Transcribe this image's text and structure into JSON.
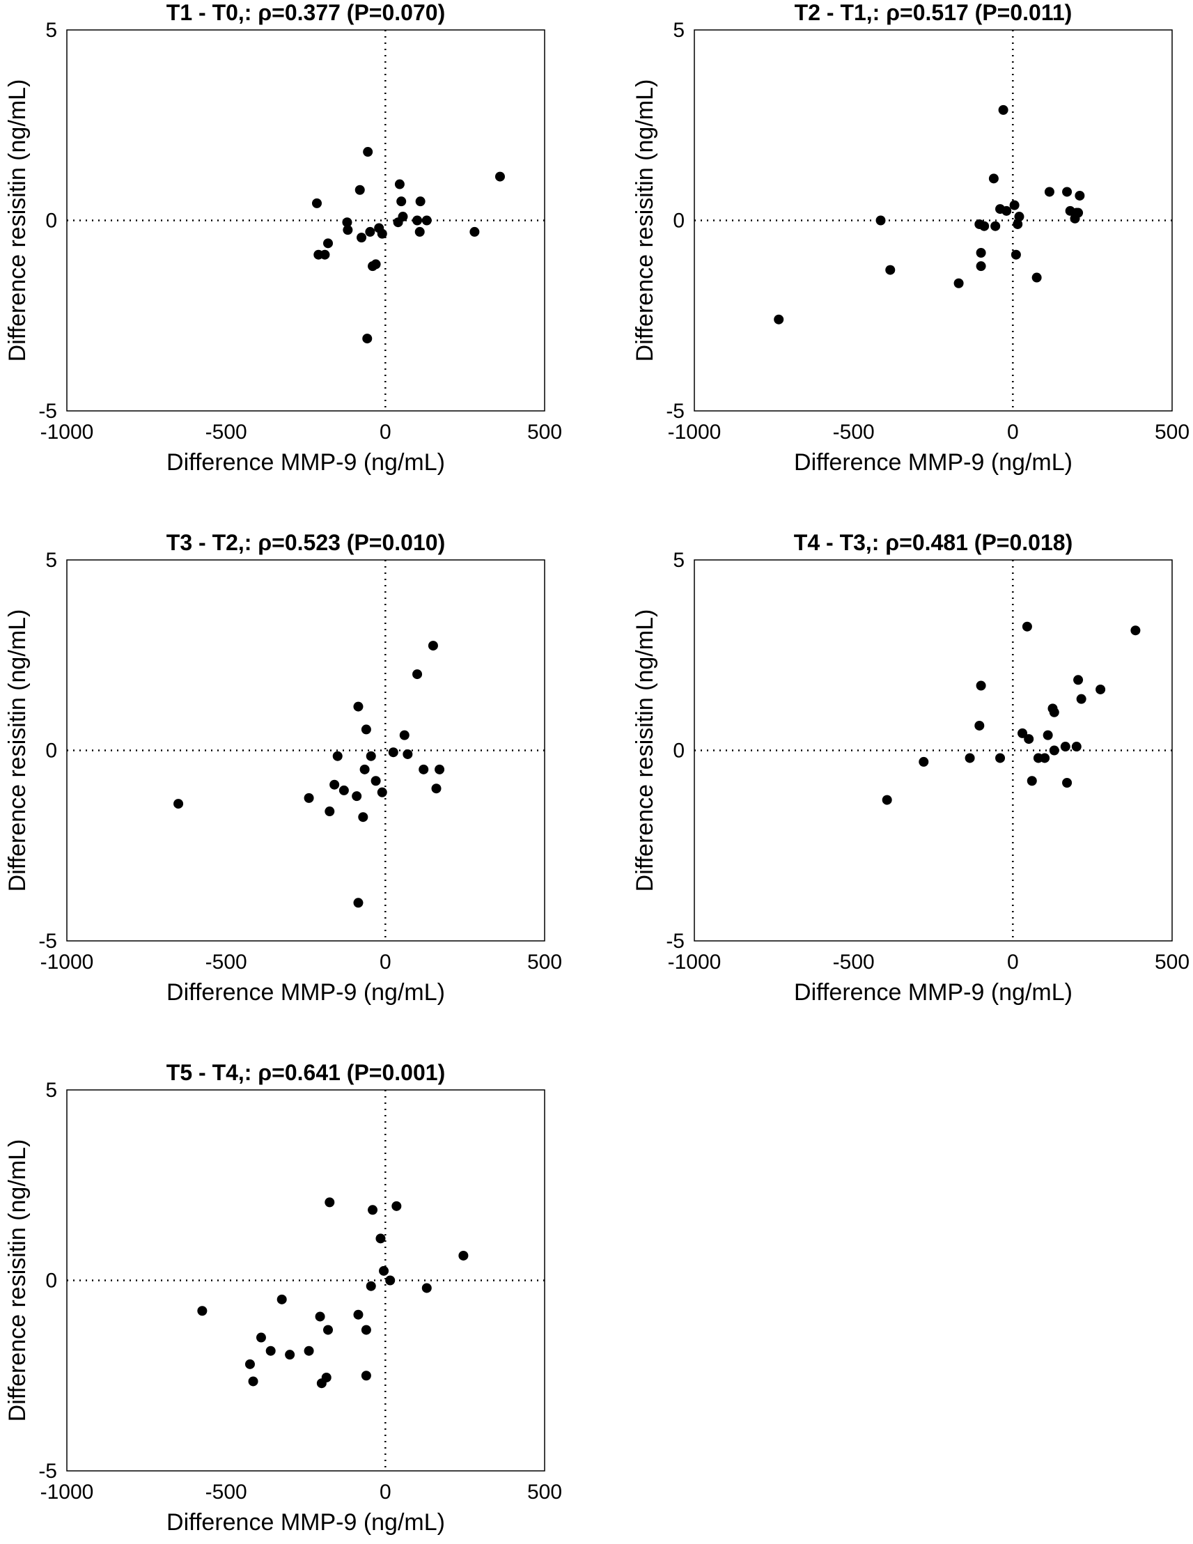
{
  "chart_data": [
    {
      "type": "scatter",
      "title": "T1 - T0,: ρ=0.377 (P=0.070)",
      "xlabel": "Difference MMP-9 (ng/mL)",
      "ylabel": "Difference resisitin (ng/mL)",
      "xlim": [
        -1000,
        500
      ],
      "ylim": [
        -5,
        5
      ],
      "xticks": [
        "-1000",
        "-500",
        "0",
        "500"
      ],
      "yticks": [
        "-5",
        "0",
        "5"
      ],
      "reference_lines": {
        "x": 0,
        "y": 0,
        "style": "dotted"
      },
      "grid": false,
      "points": [
        [
          -215,
          0.45
        ],
        [
          -210,
          -0.9
        ],
        [
          -190,
          -0.9
        ],
        [
          -180,
          -0.6
        ],
        [
          -120,
          -0.05
        ],
        [
          -118,
          -0.25
        ],
        [
          -80,
          0.8
        ],
        [
          -75,
          -0.45
        ],
        [
          -55,
          1.8
        ],
        [
          -57,
          -3.1
        ],
        [
          -48,
          -0.3
        ],
        [
          -40,
          -1.2
        ],
        [
          -30,
          -1.15
        ],
        [
          -20,
          -0.2
        ],
        [
          -10,
          -0.35
        ],
        [
          40,
          -0.05
        ],
        [
          45,
          0.95
        ],
        [
          50,
          0.5
        ],
        [
          55,
          0.1
        ],
        [
          100,
          0.0
        ],
        [
          108,
          -0.3
        ],
        [
          110,
          0.5
        ],
        [
          130,
          0.0
        ],
        [
          280,
          -0.3
        ],
        [
          360,
          1.15
        ]
      ]
    },
    {
      "type": "scatter",
      "title": "T2 - T1,: ρ=0.517 (P=0.011)",
      "xlabel": "Difference MMP-9 (ng/mL)",
      "ylabel": "Difference resisitin (ng/mL)",
      "xlim": [
        -1000,
        500
      ],
      "ylim": [
        -5,
        5
      ],
      "xticks": [
        "-1000",
        "-500",
        "0",
        "500"
      ],
      "yticks": [
        "-5",
        "0",
        "5"
      ],
      "reference_lines": {
        "x": 0,
        "y": 0,
        "style": "dotted"
      },
      "grid": false,
      "points": [
        [
          -735,
          -2.6
        ],
        [
          -415,
          0.0
        ],
        [
          -385,
          -1.3
        ],
        [
          -170,
          -1.65
        ],
        [
          -105,
          -0.1
        ],
        [
          -100,
          -0.85
        ],
        [
          -100,
          -1.2
        ],
        [
          -90,
          -0.15
        ],
        [
          -60,
          1.1
        ],
        [
          -55,
          -0.15
        ],
        [
          -40,
          0.3
        ],
        [
          -30,
          2.9
        ],
        [
          -20,
          0.25
        ],
        [
          5,
          0.4
        ],
        [
          10,
          -0.9
        ],
        [
          15,
          -0.1
        ],
        [
          20,
          0.1
        ],
        [
          75,
          -1.5
        ],
        [
          115,
          0.75
        ],
        [
          170,
          0.75
        ],
        [
          180,
          0.25
        ],
        [
          195,
          0.05
        ],
        [
          200,
          0.2
        ],
        [
          205,
          0.2
        ],
        [
          210,
          0.65
        ]
      ]
    },
    {
      "type": "scatter",
      "title": "T3 - T2,: ρ=0.523 (P=0.010)",
      "xlabel": "Difference MMP-9 (ng/mL)",
      "ylabel": "Difference resisitin (ng/mL)",
      "xlim": [
        -1000,
        500
      ],
      "ylim": [
        -5,
        5
      ],
      "xticks": [
        "-1000",
        "-500",
        "0",
        "500"
      ],
      "yticks": [
        "-5",
        "0",
        "5"
      ],
      "reference_lines": {
        "x": 0,
        "y": 0,
        "style": "dotted"
      },
      "grid": false,
      "points": [
        [
          -650,
          -1.4
        ],
        [
          -240,
          -1.25
        ],
        [
          -175,
          -1.6
        ],
        [
          -160,
          -0.9
        ],
        [
          -150,
          -0.15
        ],
        [
          -130,
          -1.05
        ],
        [
          -90,
          -1.2
        ],
        [
          -85,
          1.15
        ],
        [
          -85,
          -4.0
        ],
        [
          -70,
          -1.75
        ],
        [
          -65,
          -0.5
        ],
        [
          -60,
          0.55
        ],
        [
          -45,
          -0.15
        ],
        [
          -30,
          -0.8
        ],
        [
          -10,
          -1.1
        ],
        [
          25,
          -0.05
        ],
        [
          60,
          0.4
        ],
        [
          70,
          -0.1
        ],
        [
          100,
          2.0
        ],
        [
          120,
          -0.5
        ],
        [
          150,
          2.75
        ],
        [
          160,
          -1.0
        ],
        [
          170,
          -0.5
        ]
      ]
    },
    {
      "type": "scatter",
      "title": "T4 - T3,: ρ=0.481 (P=0.018)",
      "xlabel": "Difference MMP-9 (ng/mL)",
      "ylabel": "Difference resisitin (ng/mL)",
      "xlim": [
        -1000,
        500
      ],
      "ylim": [
        -5,
        5
      ],
      "xticks": [
        "-1000",
        "-500",
        "0",
        "500"
      ],
      "yticks": [
        "-5",
        "0",
        "5"
      ],
      "reference_lines": {
        "x": 0,
        "y": 0,
        "style": "dotted"
      },
      "grid": false,
      "points": [
        [
          -395,
          -1.3
        ],
        [
          -280,
          -0.3
        ],
        [
          -135,
          -0.2
        ],
        [
          -105,
          0.65
        ],
        [
          -100,
          1.7
        ],
        [
          -40,
          -0.2
        ],
        [
          30,
          0.45
        ],
        [
          45,
          3.25
        ],
        [
          50,
          0.3
        ],
        [
          60,
          -0.8
        ],
        [
          80,
          -0.2
        ],
        [
          100,
          -0.2
        ],
        [
          110,
          0.4
        ],
        [
          125,
          1.1
        ],
        [
          130,
          0.0
        ],
        [
          130,
          1.0
        ],
        [
          165,
          0.1
        ],
        [
          170,
          -0.85
        ],
        [
          200,
          0.1
        ],
        [
          205,
          1.85
        ],
        [
          215,
          1.35
        ],
        [
          275,
          1.6
        ],
        [
          385,
          3.15
        ]
      ]
    },
    {
      "type": "scatter",
      "title": "T5 - T4,: ρ=0.641 (P=0.001)",
      "xlabel": "Difference MMP-9 (ng/mL)",
      "ylabel": "Difference resisitin (ng/mL)",
      "xlim": [
        -1000,
        500
      ],
      "ylim": [
        -5,
        5
      ],
      "xticks": [
        "-1000",
        "-500",
        "0",
        "500"
      ],
      "yticks": [
        "-5",
        "0",
        "5"
      ],
      "reference_lines": {
        "x": 0,
        "y": 0,
        "style": "dotted"
      },
      "grid": false,
      "points": [
        [
          -575,
          -0.8
        ],
        [
          -425,
          -2.2
        ],
        [
          -415,
          -2.65
        ],
        [
          -390,
          -1.5
        ],
        [
          -360,
          -1.85
        ],
        [
          -325,
          -0.5
        ],
        [
          -300,
          -1.95
        ],
        [
          -240,
          -1.85
        ],
        [
          -205,
          -0.95
        ],
        [
          -200,
          -2.7
        ],
        [
          -185,
          -2.55
        ],
        [
          -180,
          -1.3
        ],
        [
          -175,
          2.05
        ],
        [
          -85,
          -0.9
        ],
        [
          -60,
          -1.3
        ],
        [
          -60,
          -2.5
        ],
        [
          -45,
          -0.15
        ],
        [
          -40,
          1.85
        ],
        [
          -15,
          1.1
        ],
        [
          -5,
          0.25
        ],
        [
          15,
          0.0
        ],
        [
          35,
          1.95
        ],
        [
          130,
          -0.2
        ],
        [
          245,
          0.65
        ]
      ]
    }
  ]
}
